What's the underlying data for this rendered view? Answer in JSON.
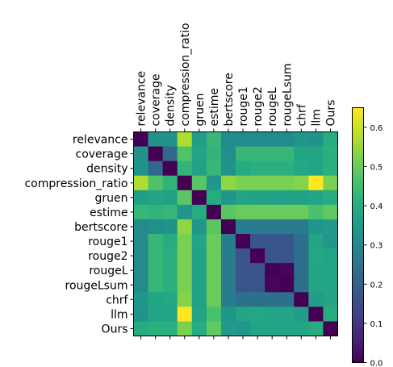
{
  "chart_data": {
    "type": "heatmap",
    "title": "",
    "labels": [
      "relevance",
      "coverage",
      "density",
      "compression_ratio",
      "gruen",
      "estime",
      "bertscore",
      "rouge1",
      "rouge2",
      "rougeL",
      "rougeLsum",
      "chrf",
      "llm",
      "Ours"
    ],
    "matrix": [
      [
        0.0,
        0.33,
        0.33,
        0.57,
        0.36,
        0.43,
        0.31,
        0.31,
        0.31,
        0.31,
        0.31,
        0.34,
        0.33,
        0.4
      ],
      [
        0.33,
        0.0,
        0.22,
        0.47,
        0.38,
        0.42,
        0.32,
        0.43,
        0.43,
        0.43,
        0.43,
        0.38,
        0.38,
        0.41
      ],
      [
        0.33,
        0.22,
        0.0,
        0.42,
        0.37,
        0.43,
        0.33,
        0.4,
        0.41,
        0.41,
        0.41,
        0.39,
        0.38,
        0.41
      ],
      [
        0.57,
        0.47,
        0.42,
        0.0,
        0.48,
        0.34,
        0.54,
        0.52,
        0.52,
        0.52,
        0.52,
        0.53,
        0.65,
        0.52
      ],
      [
        0.36,
        0.38,
        0.37,
        0.48,
        0.0,
        0.4,
        0.34,
        0.38,
        0.37,
        0.37,
        0.37,
        0.37,
        0.38,
        0.4
      ],
      [
        0.43,
        0.42,
        0.43,
        0.34,
        0.4,
        0.0,
        0.48,
        0.5,
        0.5,
        0.5,
        0.5,
        0.5,
        0.46,
        0.49
      ],
      [
        0.31,
        0.32,
        0.33,
        0.54,
        0.34,
        0.48,
        0.0,
        0.27,
        0.27,
        0.27,
        0.27,
        0.27,
        0.34,
        0.35
      ],
      [
        0.31,
        0.43,
        0.4,
        0.52,
        0.38,
        0.5,
        0.27,
        0.0,
        0.17,
        0.17,
        0.17,
        0.24,
        0.38,
        0.34
      ],
      [
        0.31,
        0.43,
        0.41,
        0.52,
        0.37,
        0.5,
        0.27,
        0.17,
        0.0,
        0.17,
        0.17,
        0.24,
        0.39,
        0.38
      ],
      [
        0.31,
        0.43,
        0.41,
        0.52,
        0.37,
        0.5,
        0.27,
        0.17,
        0.17,
        0.0,
        0.01,
        0.24,
        0.38,
        0.38
      ],
      [
        0.31,
        0.43,
        0.41,
        0.52,
        0.37,
        0.5,
        0.27,
        0.17,
        0.17,
        0.01,
        0.0,
        0.24,
        0.38,
        0.38
      ],
      [
        0.34,
        0.38,
        0.39,
        0.53,
        0.37,
        0.5,
        0.27,
        0.24,
        0.24,
        0.24,
        0.24,
        0.0,
        0.36,
        0.38
      ],
      [
        0.33,
        0.38,
        0.38,
        0.65,
        0.38,
        0.46,
        0.34,
        0.38,
        0.39,
        0.38,
        0.38,
        0.36,
        0.0,
        0.4
      ],
      [
        0.4,
        0.41,
        0.41,
        0.52,
        0.4,
        0.49,
        0.35,
        0.34,
        0.38,
        0.38,
        0.38,
        0.38,
        0.4,
        0.0
      ]
    ],
    "colormap": "viridis",
    "vmin": 0.0,
    "vmax": 0.65,
    "colorbar_ticks": [
      "0.0",
      "0.1",
      "0.2",
      "0.3",
      "0.4",
      "0.5",
      "0.6"
    ],
    "grid": false
  }
}
